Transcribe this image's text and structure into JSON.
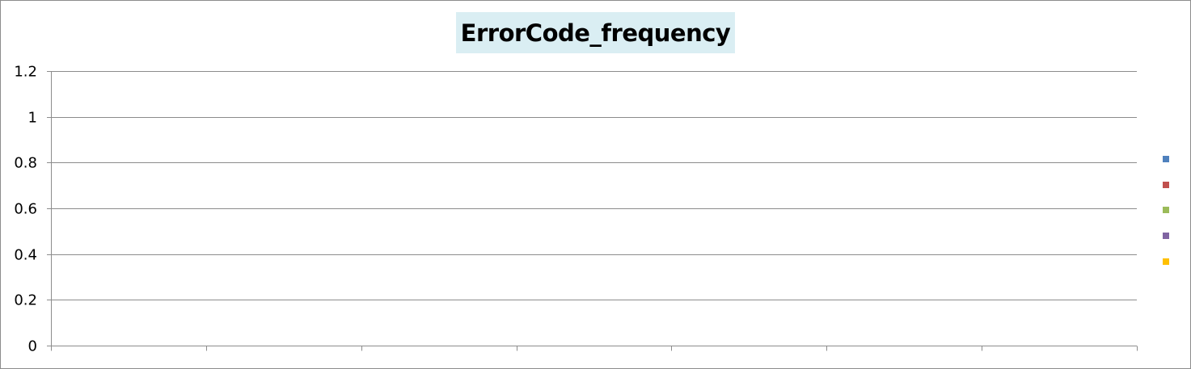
{
  "chart_data": {
    "type": "bar",
    "title": "ErrorCode_frequency",
    "xlabel": "",
    "ylabel": "",
    "ylim": [
      0,
      1.2
    ],
    "y_ticks": [
      "0",
      "0.2",
      "0.4",
      "0.6",
      "0.8",
      "1",
      "1.2"
    ],
    "y_tick_values": [
      0,
      0.2,
      0.4,
      0.6,
      0.8,
      1.0,
      1.2
    ],
    "x_category_count": 7,
    "categories": [],
    "series": [
      {
        "color": "#4f81bd",
        "values": []
      },
      {
        "color": "#c0504d",
        "values": []
      },
      {
        "color": "#9bbb59",
        "values": []
      },
      {
        "color": "#8064a2",
        "values": []
      },
      {
        "color": "#ffc000",
        "values": []
      }
    ],
    "grid": true,
    "legend_position": "right"
  },
  "colors": {
    "title_background": "#daeef3",
    "gridline": "#8c8c8c",
    "frame_border": "#8c8c8c"
  }
}
